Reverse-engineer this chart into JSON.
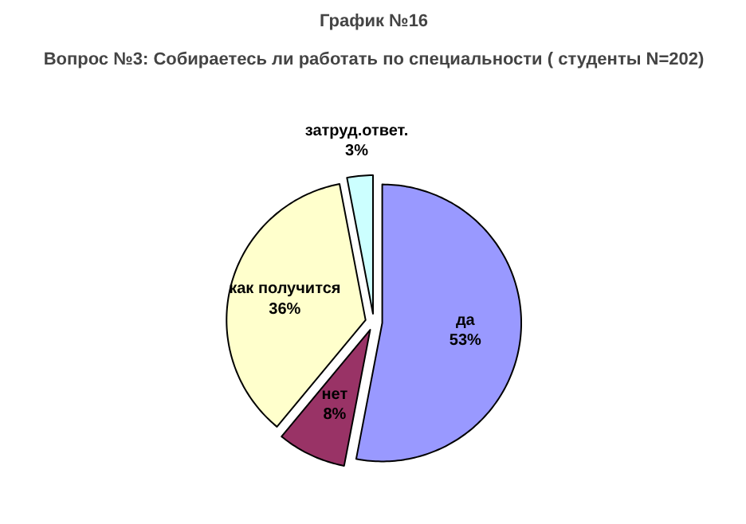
{
  "chart_data": {
    "type": "pie",
    "title": "График №16",
    "subtitle": "Вопрос №3: Собираетесь ли работать по специальности ( студенты N=202)",
    "categories": [
      "да",
      "нет",
      "как получится",
      "затруд.ответ."
    ],
    "values": [
      53,
      8,
      36,
      3
    ],
    "colors": [
      "#9999ff",
      "#993366",
      "#ffffcc",
      "#ccffff"
    ],
    "value_labels": [
      "53%",
      "8%",
      "36%",
      "3%"
    ]
  }
}
